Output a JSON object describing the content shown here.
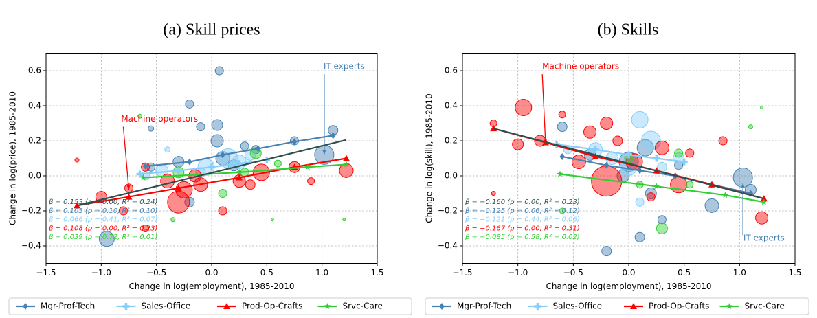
{
  "chart_data": [
    {
      "type": "scatter",
      "title": "(a) Skill prices",
      "xlabel": "Change in log(employment), 1985-2010",
      "ylabel": "Change in log(price), 1985-2010",
      "xlim": [
        -1.5,
        1.5
      ],
      "ylim": [
        -0.5,
        0.7
      ],
      "xticks": [
        {
          "value": -1.5,
          "label": "−1.5"
        },
        {
          "value": -1.0,
          "label": "−1.0"
        },
        {
          "value": -0.5,
          "label": "−0.5"
        },
        {
          "value": 0,
          "label": "0.0"
        },
        {
          "value": 0.5,
          "label": "0.5"
        },
        {
          "value": 1.0,
          "label": "1.0"
        },
        {
          "value": 1.5,
          "label": "1.5"
        }
      ],
      "yticks": [
        {
          "value": -0.4,
          "label": "−0.4"
        },
        {
          "value": -0.2,
          "label": "−0.2"
        },
        {
          "value": 0,
          "label": "0.0"
        },
        {
          "value": 0.2,
          "label": "0.2"
        },
        {
          "value": 0.4,
          "label": "0.4"
        },
        {
          "value": 0.6,
          "label": "0.6"
        }
      ],
      "grid": true,
      "series": [
        {
          "name": "Mgr-Prof-Tech",
          "color": "#4682b4",
          "marker": "D",
          "x": [
            0.07,
            -0.2,
            0.05,
            -0.1,
            0.05,
            1.1,
            0.75,
            1.02,
            0.3,
            -0.3,
            0.1,
            -0.55,
            -0.95,
            -0.55,
            0.2,
            0.4,
            -0.2
          ],
          "y": [
            0.6,
            0.41,
            0.29,
            0.28,
            0.2,
            0.26,
            0.2,
            0.12,
            0.17,
            0.08,
            0.1,
            0.05,
            -0.36,
            0.27,
            0.06,
            0.15,
            -0.15
          ],
          "size": [
            6,
            6,
            8,
            6,
            9,
            7,
            6,
            14,
            6,
            8,
            10,
            6,
            11,
            4,
            8,
            6,
            7
          ],
          "fit": {
            "x": [
              -0.6,
              -0.2,
              0.1,
              0.42,
              0.75,
              1.1
            ],
            "y": [
              0.055,
              0.08,
              0.12,
              0.155,
              0.195,
              0.23
            ]
          }
        },
        {
          "name": "Sales-Office",
          "color": "#87cefa",
          "marker": "P",
          "x": [
            0.15,
            -0.05,
            -0.45,
            -0.4,
            0.25,
            -0.6,
            0.35,
            -0.1
          ],
          "y": [
            0.1,
            0.05,
            0.03,
            0.15,
            0.08,
            0.0,
            0.12,
            0.02
          ],
          "size": [
            14,
            12,
            9,
            4,
            10,
            6,
            8,
            7
          ],
          "fit": {
            "x": [
              -0.65,
              -0.3,
              0.0,
              0.25,
              0.5
            ],
            "y": [
              0.01,
              0.03,
              0.05,
              0.07,
              0.09
            ]
          }
        },
        {
          "name": "Prod-Op-Crafts",
          "color": "#ff0000",
          "marker": "^",
          "x": [
            -1.0,
            -0.75,
            -0.8,
            -0.3,
            -0.25,
            -0.4,
            0.45,
            1.22,
            0.75,
            0.1,
            -0.6,
            -0.6,
            0.25,
            -0.1,
            0.9,
            -1.22,
            -0.15,
            0.35
          ],
          "y": [
            -0.12,
            -0.07,
            -0.2,
            -0.15,
            -0.08,
            -0.03,
            0.02,
            0.03,
            0.05,
            -0.2,
            -0.3,
            0.05,
            -0.03,
            -0.05,
            -0.03,
            0.09,
            0.0,
            -0.05
          ],
          "size": [
            8,
            6,
            6,
            16,
            12,
            10,
            12,
            10,
            8,
            6,
            5,
            6,
            9,
            10,
            5,
            3,
            9,
            7
          ],
          "fit": {
            "x": [
              -1.22,
              -0.75,
              -0.3,
              0.25,
              0.75,
              1.22
            ],
            "y": [
              -0.17,
              -0.12,
              -0.07,
              -0.01,
              0.05,
              0.1
            ]
          }
        },
        {
          "name": "Srvc-Care",
          "color": "#32cd32",
          "marker": "*",
          "x": [
            0.4,
            0.1,
            -0.3,
            -0.65,
            0.55,
            -0.35,
            1.2,
            0.6,
            0.3
          ],
          "y": [
            0.13,
            -0.1,
            0.02,
            0.34,
            -0.25,
            -0.25,
            -0.25,
            0.07,
            0.02
          ],
          "size": [
            8,
            6,
            8,
            3,
            2,
            3,
            2,
            5,
            6
          ],
          "fit": {
            "x": [
              -0.62,
              0.25,
              0.87,
              1.22
            ],
            "y": [
              -0.01,
              0.02,
              0.05,
              0.065
            ]
          }
        }
      ],
      "overall_fit": {
        "color": "#2f4f4f",
        "x": [
          -1.22,
          1.22
        ],
        "y": [
          -0.17,
          0.205
        ]
      },
      "stats": [
        {
          "text": "β = 0.153 (p = 0.00, R² = 0.24)",
          "color": "#2f4f4f"
        },
        {
          "text": "β = 0.105 (p = 0.10, R² = 0.10)",
          "color": "#4682b4"
        },
        {
          "text": "β = 0.066 (p = 0.41, R² = 0.07)",
          "color": "#87cefa"
        },
        {
          "text": "β = 0.108 (p = 0.00, R² = 0.23)",
          "color": "#ff0000"
        },
        {
          "text": "β = 0.039 (p = 0.72, R² = 0.01)",
          "color": "#32cd32"
        }
      ],
      "annotations": [
        {
          "text": "Machine operators",
          "color": "#ff0000"
        },
        {
          "text": "IT experts",
          "color": "#4682b4"
        }
      ]
    },
    {
      "type": "scatter",
      "title": "(b) Skills",
      "xlabel": "Change in log(employment), 1985-2010",
      "ylabel": "Change in log(skill), 1985-2010",
      "xlim": [
        -1.5,
        1.5
      ],
      "ylim": [
        -0.5,
        0.7
      ],
      "xticks": [
        {
          "value": -1.5,
          "label": "−1.5"
        },
        {
          "value": -1.0,
          "label": "−1.0"
        },
        {
          "value": -0.5,
          "label": "−0.5"
        },
        {
          "value": 0,
          "label": "0.0"
        },
        {
          "value": 0.5,
          "label": "0.5"
        },
        {
          "value": 1.0,
          "label": "1.0"
        },
        {
          "value": 1.5,
          "label": "1.5"
        }
      ],
      "yticks": [
        {
          "value": -0.4,
          "label": "−0.4"
        },
        {
          "value": -0.2,
          "label": "−0.2"
        },
        {
          "value": 0,
          "label": "0.0"
        },
        {
          "value": 0.2,
          "label": "0.2"
        },
        {
          "value": 0.4,
          "label": "0.4"
        },
        {
          "value": 0.6,
          "label": "0.6"
        }
      ],
      "grid": true,
      "series": [
        {
          "name": "Mgr-Prof-Tech",
          "color": "#4682b4",
          "marker": "D",
          "x": [
            1.03,
            0.75,
            0.0,
            0.15,
            -0.6,
            0.1,
            -0.2,
            0.45,
            -0.35,
            0.3,
            1.1,
            -0.05,
            0.2
          ],
          "y": [
            -0.01,
            -0.17,
            0.08,
            0.16,
            0.28,
            -0.35,
            -0.43,
            0.06,
            0.12,
            -0.25,
            -0.08,
            0.0,
            -0.1
          ],
          "size": [
            14,
            10,
            14,
            12,
            7,
            7,
            7,
            6,
            8,
            6,
            8,
            9,
            8
          ],
          "fit": {
            "x": [
              -0.6,
              -0.2,
              0.1,
              0.42,
              0.75,
              1.1
            ],
            "y": [
              0.11,
              0.06,
              0.03,
              0.0,
              -0.05,
              -0.1
            ]
          }
        },
        {
          "name": "Sales-Office",
          "color": "#87cefa",
          "marker": "P",
          "x": [
            0.1,
            0.2,
            -0.3,
            0.0,
            -0.55,
            0.45,
            -0.15,
            0.3,
            0.1
          ],
          "y": [
            0.32,
            0.2,
            0.15,
            0.05,
            0.15,
            0.1,
            0.1,
            0.05,
            -0.15
          ],
          "size": [
            12,
            14,
            10,
            12,
            6,
            8,
            9,
            7,
            6
          ],
          "fit": {
            "x": [
              -0.65,
              -0.3,
              0.0,
              0.25,
              0.5
            ],
            "y": [
              0.18,
              0.15,
              0.12,
              0.1,
              0.08
            ]
          }
        },
        {
          "name": "Prod-Op-Crafts",
          "color": "#ff0000",
          "marker": "^",
          "x": [
            -0.95,
            -1.22,
            -1.0,
            -0.8,
            -0.2,
            -0.35,
            0.3,
            0.45,
            1.2,
            0.85,
            -0.45,
            -0.2,
            0.05,
            -0.6,
            0.2,
            -1.22,
            0.55,
            -0.1
          ],
          "y": [
            0.39,
            0.3,
            0.18,
            0.2,
            -0.03,
            0.25,
            0.16,
            -0.05,
            -0.24,
            0.2,
            0.08,
            0.3,
            0.08,
            0.35,
            -0.12,
            -0.1,
            0.13,
            0.2
          ],
          "size": [
            12,
            5,
            8,
            8,
            22,
            9,
            10,
            12,
            9,
            6,
            10,
            9,
            12,
            5,
            6,
            3,
            6,
            7
          ],
          "fit": {
            "x": [
              -1.22,
              -0.75,
              -0.3,
              0.25,
              0.75,
              1.22
            ],
            "y": [
              0.27,
              0.19,
              0.11,
              0.03,
              -0.05,
              -0.13
            ]
          }
        },
        {
          "name": "Srvc-Care",
          "color": "#32cd32",
          "marker": "*",
          "x": [
            0.3,
            0.45,
            -0.6,
            0.0,
            1.1,
            1.2,
            0.55,
            0.1
          ],
          "y": [
            -0.3,
            0.13,
            -0.2,
            0.1,
            0.28,
            0.39,
            -0.05,
            -0.05
          ],
          "size": [
            8,
            6,
            4,
            6,
            3,
            2,
            5,
            5
          ],
          "fit": {
            "x": [
              -0.62,
              0.25,
              0.87,
              1.22
            ],
            "y": [
              0.01,
              -0.06,
              -0.11,
              -0.15
            ]
          }
        }
      ],
      "overall_fit": {
        "color": "#2f4f4f",
        "x": [
          -1.22,
          1.22
        ],
        "y": [
          0.27,
          -0.13
        ]
      },
      "stats": [
        {
          "text": "β = −0.160 (p = 0.00, R² = 0.23)",
          "color": "#2f4f4f"
        },
        {
          "text": "β = −0.125 (p = 0.06, R² = 0.12)",
          "color": "#4682b4"
        },
        {
          "text": "β = −0.121 (p = 0.44, R² = 0.06)",
          "color": "#87cefa"
        },
        {
          "text": "β = −0.167 (p = 0.00, R² = 0.31)",
          "color": "#ff0000"
        },
        {
          "text": "β = −0.085 (p = 0.58, R² = 0.02)",
          "color": "#32cd32"
        }
      ],
      "annotations": [
        {
          "text": "Machine operators",
          "color": "#ff0000"
        },
        {
          "text": "IT experts",
          "color": "#4682b4"
        }
      ]
    }
  ]
}
